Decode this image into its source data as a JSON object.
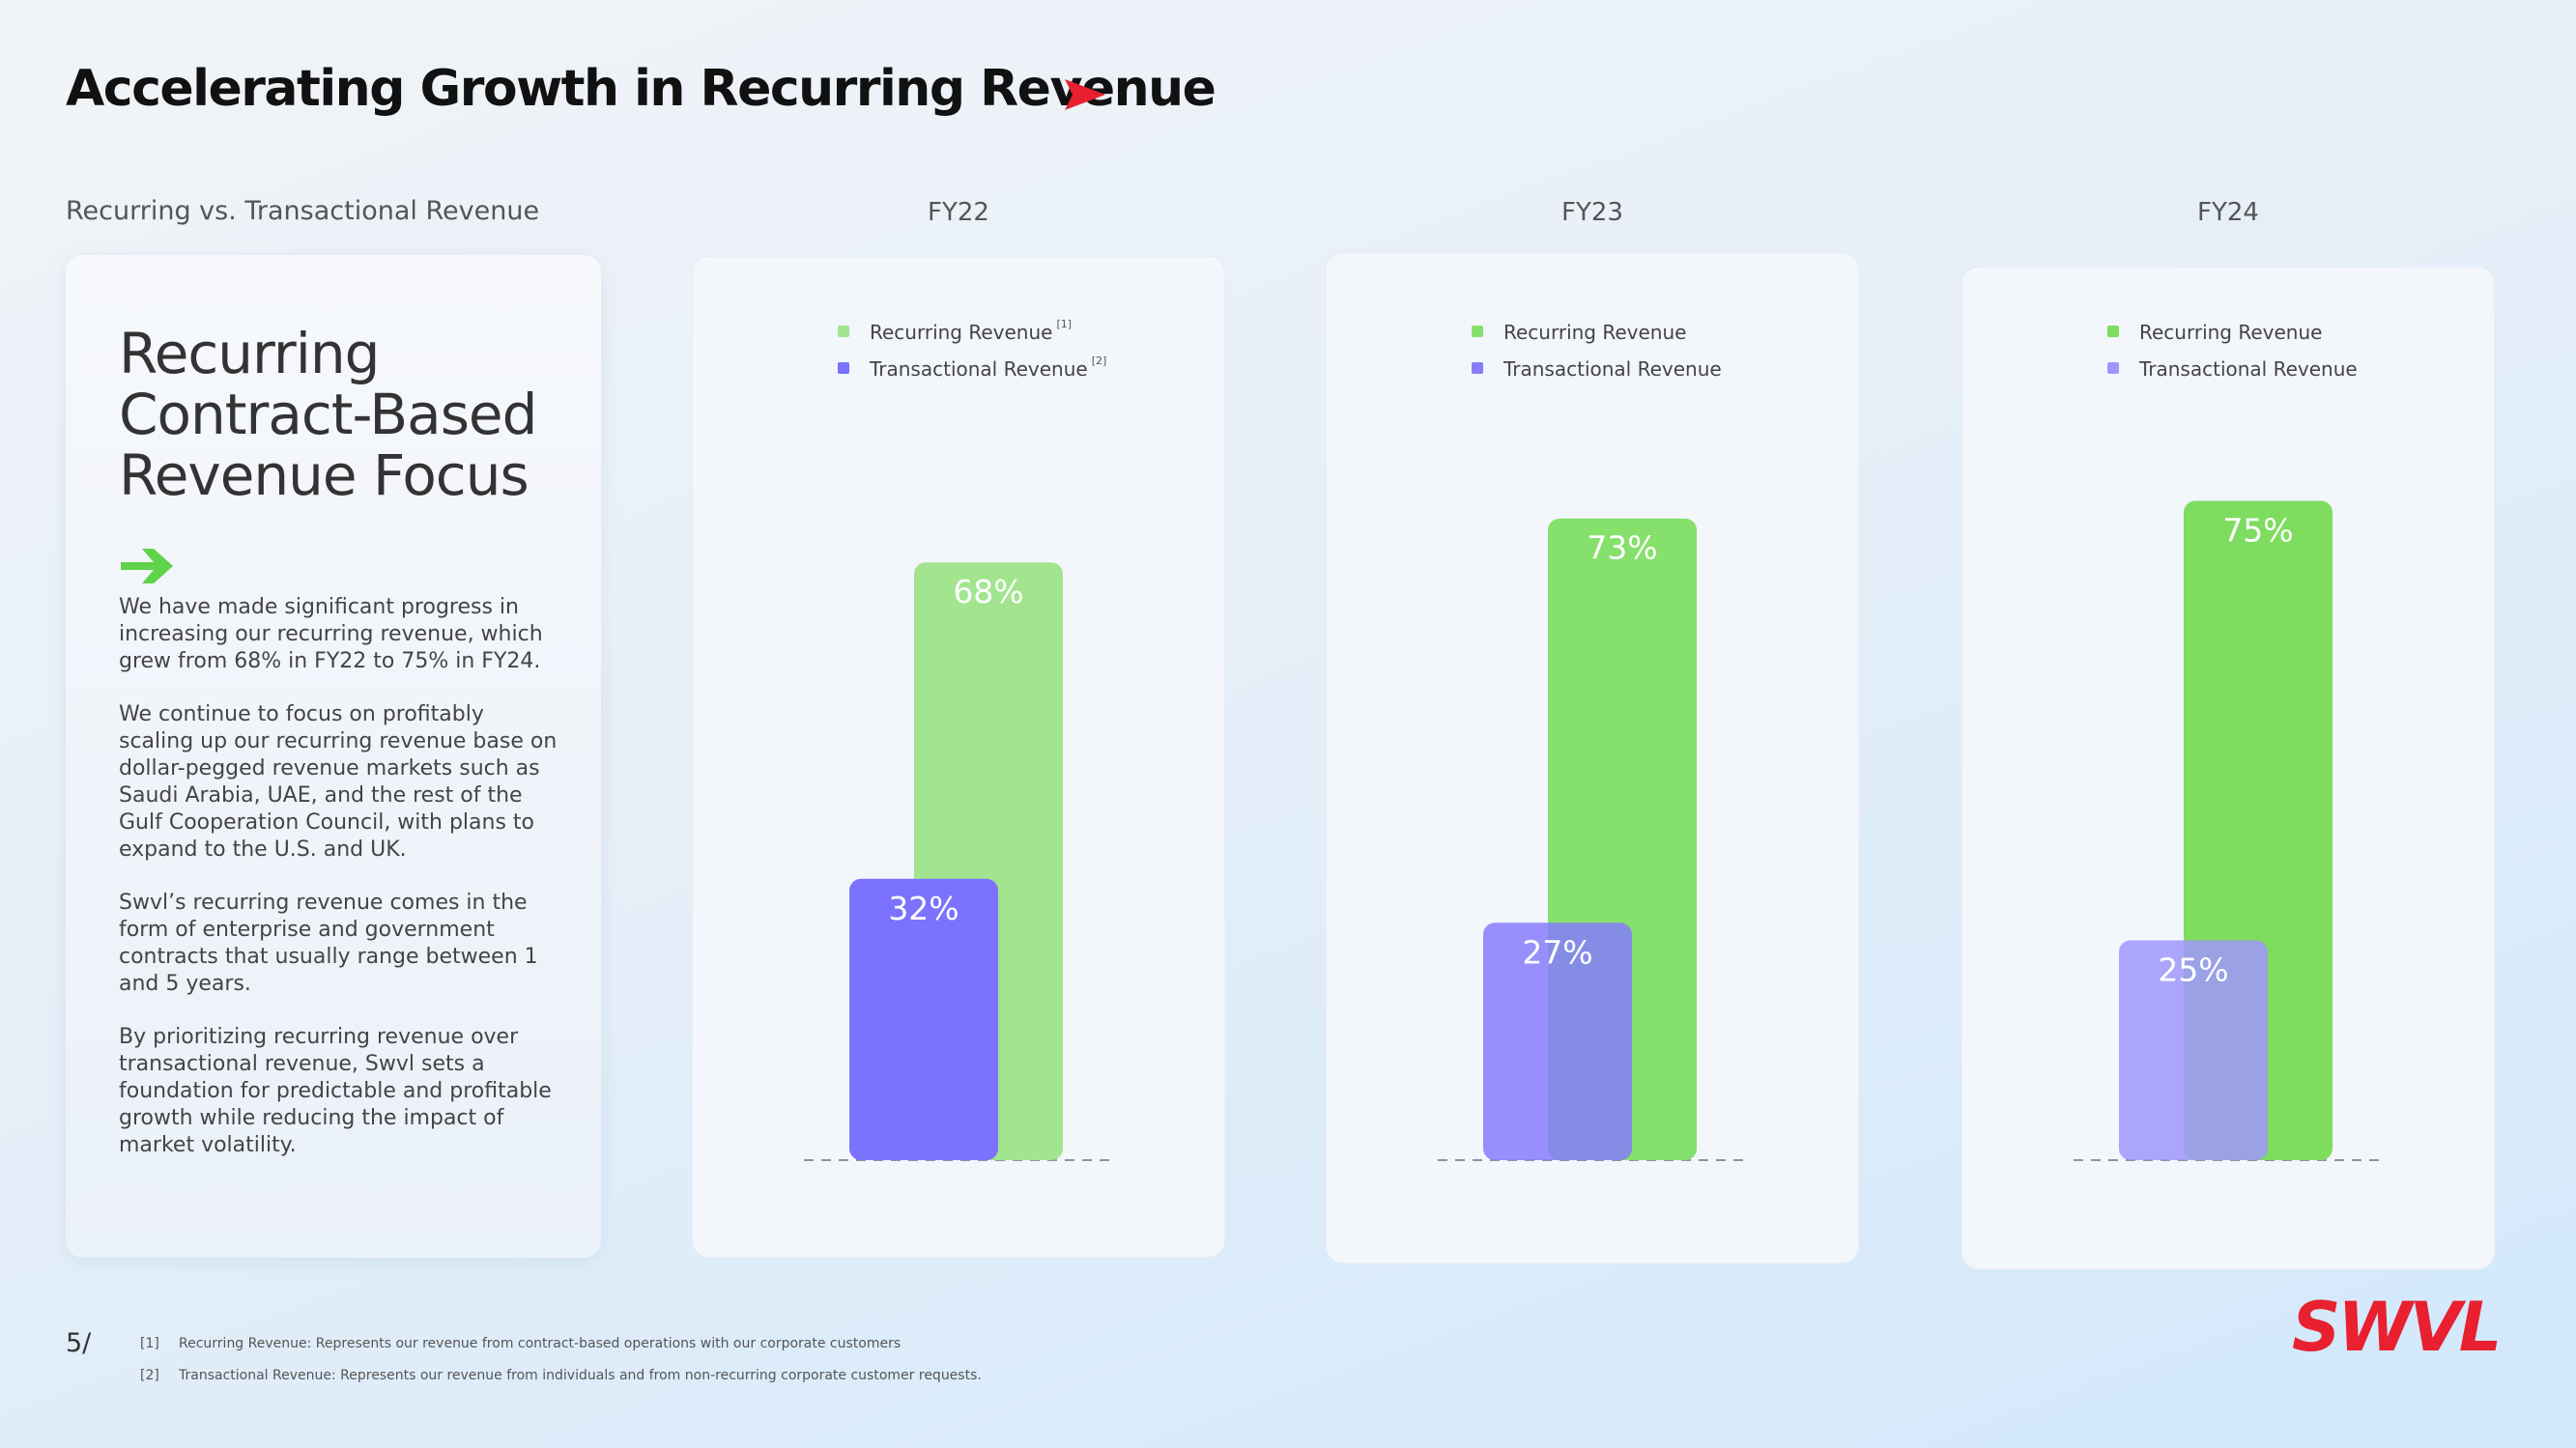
{
  "header": {
    "title": "Accelerating Growth in Recurring Revenue",
    "subtitle": "Recurring vs. Transactional Revenue"
  },
  "panel": {
    "heading": [
      "Recurring",
      "Contract-Based",
      "Revenue Focus"
    ],
    "paragraphs": [
      "We have made significant progress in increasing our recurring revenue, which grew from 68% in FY22 to 75% in FY24.",
      "We continue to focus on profitably scaling up our recurring revenue base on dollar-pegged revenue markets such as Saudi Arabia, UAE,  and the rest of the Gulf Cooperation Council, with plans to expand to the U.S. and UK.",
      "Swvl’s recurring revenue comes in the form of enterprise and government contracts that usually range between 1 and 5 years.",
      "By prioritizing recurring revenue over transactional revenue, Swvl sets a foundation for predictable and profitable growth while reducing the impact of market volatility."
    ]
  },
  "chart_data": [
    {
      "type": "bar",
      "title": "FY22",
      "categories": [
        null
      ],
      "series": [
        {
          "name": "Recurring Revenue",
          "note": "[1]",
          "color": "#a2e58e",
          "values": [
            68
          ],
          "value_labels": [
            "68%"
          ]
        },
        {
          "name": "Transactional Revenue",
          "note": "[2]",
          "color": "#7b72ff",
          "values": [
            32
          ],
          "value_labels": [
            "32%"
          ]
        }
      ]
    },
    {
      "type": "bar",
      "title": "FY23",
      "categories": [
        null
      ],
      "series": [
        {
          "name": "Recurring Revenue",
          "color": "#86e06c",
          "values": [
            73
          ],
          "value_labels": [
            "73%"
          ]
        },
        {
          "name": "Transactional Revenue",
          "color": "#857cfb",
          "values": [
            27
          ],
          "value_labels": [
            "27%"
          ]
        }
      ]
    },
    {
      "type": "bar",
      "title": "FY24",
      "categories": [
        null
      ],
      "series": [
        {
          "name": "Recurring Revenue",
          "color": "#7edc5f",
          "values": [
            75
          ],
          "value_labels": [
            "75%"
          ]
        },
        {
          "name": "Transactional Revenue",
          "color": "#9f96fb",
          "values": [
            25
          ],
          "value_labels": [
            "25%"
          ]
        }
      ]
    }
  ],
  "footer": {
    "page": "5/",
    "notes": [
      {
        "mark": "[1]",
        "text": "Recurring Revenue: Represents our revenue from contract-based operations with our corporate customers"
      },
      {
        "mark": "[2]",
        "text": "Transactional Revenue: Represents our revenue from individuals and from non-recurring corporate customer requests."
      }
    ],
    "logo": "SWVL"
  }
}
